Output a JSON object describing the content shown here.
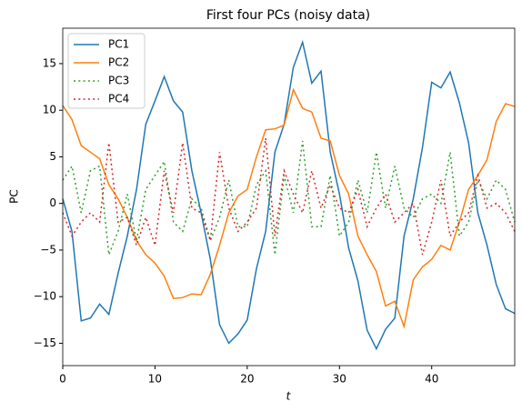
{
  "chart_data": {
    "type": "line",
    "title": "First four PCs (noisy data)",
    "xlabel": "t",
    "ylabel": "PC",
    "x": [
      0,
      1,
      2,
      3,
      4,
      5,
      6,
      7,
      8,
      9,
      10,
      11,
      12,
      13,
      14,
      15,
      16,
      17,
      18,
      19,
      20,
      21,
      22,
      23,
      24,
      25,
      26,
      27,
      28,
      29,
      30,
      31,
      32,
      33,
      34,
      35,
      36,
      37,
      38,
      39,
      40,
      41,
      42,
      43,
      44,
      45,
      46,
      47,
      48,
      49
    ],
    "series": [
      {
        "name": "PC1",
        "color": "#1f77b4",
        "dash": "solid",
        "values": [
          0.5,
          -3,
          -12.6,
          -12.3,
          -10.8,
          -11.9,
          -7.5,
          -3.5,
          1.5,
          8.5,
          11,
          13.6,
          11,
          9.8,
          3.5,
          -1,
          -6,
          -13,
          -15,
          -14,
          -12.5,
          -7,
          -3,
          5.5,
          8.5,
          14.6,
          17.3,
          12.9,
          14.2,
          5.5,
          1,
          -4.8,
          -8.3,
          -13.6,
          -15.6,
          -13.5,
          -12.3,
          -3.5,
          0.5,
          6,
          13,
          12.4,
          14.1,
          10.8,
          6.5,
          -1,
          -4.5,
          -8.7,
          -11.3,
          -11.8
        ]
      },
      {
        "name": "PC2",
        "color": "#ff7f0e",
        "dash": "solid",
        "values": [
          10.5,
          9,
          6.2,
          5.5,
          4.8,
          2,
          0.5,
          -1.5,
          -4,
          -5.5,
          -6.4,
          -7.8,
          -10.2,
          -10.1,
          -9.7,
          -9.8,
          -7.6,
          -4.5,
          -1,
          0.8,
          1.5,
          5,
          7.9,
          8,
          8.4,
          12.2,
          10.2,
          9.8,
          7,
          6.7,
          3,
          1,
          -3.5,
          -5.5,
          -7.3,
          -11,
          -10.5,
          -13.2,
          -8.2,
          -6.8,
          -6,
          -4.5,
          -5,
          -2,
          1.5,
          3,
          4.7,
          8.8,
          10.7,
          10.4
        ]
      },
      {
        "name": "PC3",
        "color": "#2ca02c",
        "dash": "dotted",
        "values": [
          2.5,
          4,
          -1,
          3.5,
          4,
          -5.5,
          -3,
          1,
          -4,
          1.5,
          3,
          4.5,
          -2,
          -3,
          0.5,
          -0.5,
          -4,
          -1.5,
          2.5,
          -2.5,
          -2.5,
          2,
          3.5,
          -5.5,
          3,
          -1,
          6.7,
          -2.5,
          -2.5,
          3,
          -3.5,
          -2,
          2.5,
          -1,
          5.5,
          -0.5,
          4,
          -0.5,
          -1.5,
          0.5,
          1,
          0,
          5.5,
          -3.5,
          -2,
          2.5,
          0.5,
          2.5,
          1.5,
          -2
        ]
      },
      {
        "name": "PC4",
        "color": "#d62728",
        "dash": "dotted",
        "values": [
          -1,
          -3.5,
          -2,
          -1,
          -2,
          6.5,
          -2,
          -1.5,
          -4.5,
          -1.5,
          -4.5,
          3.5,
          -1,
          6.5,
          -0.5,
          -1,
          -4,
          5.5,
          -0.5,
          -3,
          -2,
          -0.5,
          7,
          -3.5,
          3.5,
          1,
          -1,
          3.5,
          -0.5,
          2,
          -0.5,
          -1,
          1.5,
          -2.5,
          -0.5,
          1,
          -2,
          -1,
          0,
          -5.5,
          -2,
          2.5,
          -3.5,
          -2,
          -1,
          3,
          -0.5,
          0,
          -1,
          -3
        ]
      }
    ],
    "xlim": [
      0,
      49
    ],
    "ylim": [
      -17.4,
      18.8
    ],
    "xticks": [
      0,
      10,
      20,
      30,
      40
    ],
    "yticks": [
      {
        "value": -15,
        "label": "−15"
      },
      {
        "value": -10,
        "label": "−10"
      },
      {
        "value": -5,
        "label": "−5"
      },
      0,
      5,
      10,
      15
    ],
    "legend": "upper left",
    "grid": false
  }
}
